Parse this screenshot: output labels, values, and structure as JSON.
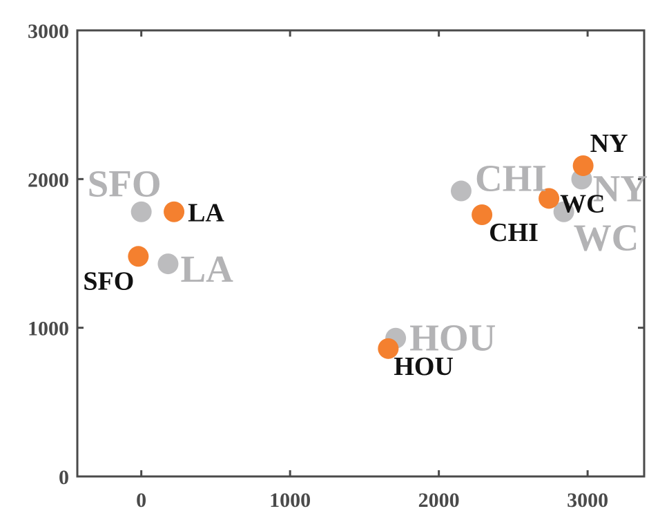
{
  "chart_data": {
    "type": "scatter",
    "title": "",
    "xlabel": "",
    "ylabel": "",
    "xlim": [
      -430,
      3380
    ],
    "ylim": [
      0,
      3000
    ],
    "xticks": [
      0,
      1000,
      2000,
      3000
    ],
    "yticks": [
      0,
      1000,
      2000,
      3000
    ],
    "xtick_labels": [
      "0",
      "1000",
      "2000",
      "3000"
    ],
    "ytick_labels": [
      "0",
      "1000",
      "2000",
      "3000"
    ],
    "grid": false,
    "series": [
      {
        "color": "#bcbcbe",
        "label_color": "#b3b3b5",
        "points": [
          {
            "label": "SFO",
            "x": 0,
            "y": 1780
          },
          {
            "label": "LA",
            "x": 180,
            "y": 1430
          },
          {
            "label": "HOU",
            "x": 1710,
            "y": 930
          },
          {
            "label": "CHI",
            "x": 2150,
            "y": 1920
          },
          {
            "label": "WC",
            "x": 2840,
            "y": 1780
          },
          {
            "label": "NY",
            "x": 2960,
            "y": 2000
          }
        ]
      },
      {
        "color": "#f4802f",
        "label_color": "#111111",
        "points": [
          {
            "label": "SFO",
            "x": -20,
            "y": 1480
          },
          {
            "label": "LA",
            "x": 220,
            "y": 1780
          },
          {
            "label": "HOU",
            "x": 1660,
            "y": 860
          },
          {
            "label": "CHI",
            "x": 2290,
            "y": 1760
          },
          {
            "label": "WC",
            "x": 2740,
            "y": 1870
          },
          {
            "label": "NY",
            "x": 2970,
            "y": 2090
          }
        ]
      }
    ]
  }
}
